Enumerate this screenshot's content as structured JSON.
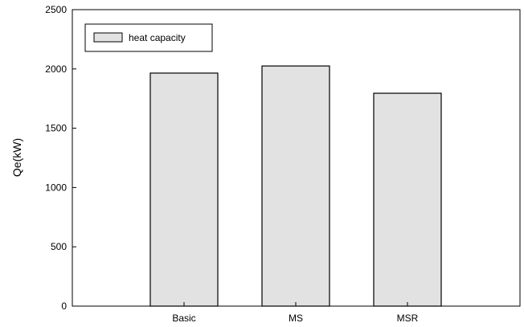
{
  "chart_data": {
    "type": "bar",
    "categories": [
      "Basic",
      "MS",
      "MSR"
    ],
    "series": [
      {
        "name": "heat capacity",
        "values": [
          1965,
          2025,
          1795
        ],
        "color": "#e2e2e2"
      }
    ],
    "title": "",
    "xlabel": "",
    "ylabel": "Qe(kW)",
    "ylim": [
      0,
      2500
    ],
    "yticks": [
      0,
      500,
      1000,
      1500,
      2000,
      2500
    ],
    "grid": false,
    "legend_position": "top-left"
  }
}
